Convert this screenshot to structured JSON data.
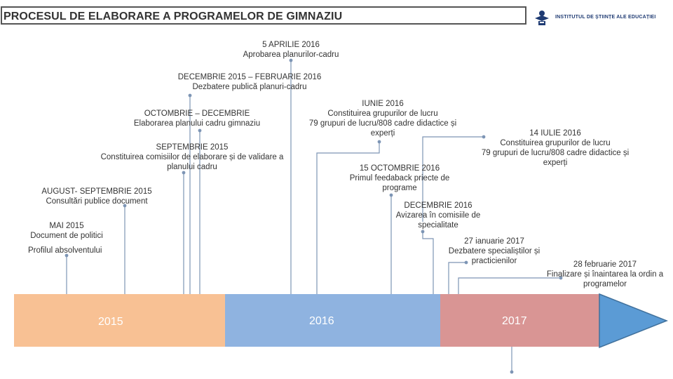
{
  "header": {
    "title": "PROCESUL DE ELABORARE A PROGRAMELOR DE GIMNAZIU",
    "logo_text": "INSTITUTUL DE ȘTIINȚE ALE EDUCAȚIEI"
  },
  "events": [
    {
      "date": "5 APRILIE 2016",
      "text": "Aprobarea planurilor-cadru"
    },
    {
      "date": "DECEMBRIE 2015 – FEBRUARIE 2016",
      "text": "Dezbatere publică planuri-cadru"
    },
    {
      "date": "OCTOMBRIE – DECEMBRIE",
      "text": "Elaborarea planului cadru gimnaziu"
    },
    {
      "date": "IUNIE 2016",
      "lines": [
        "Constituirea grupurilor de lucru",
        "79 grupuri de lucru/808 cadre didactice și",
        "experți"
      ]
    },
    {
      "date": "14 IULIE 2016",
      "lines": [
        "Constituirea grupurilor de lucru",
        "79 grupuri de lucru/808 cadre didactice și",
        "experți"
      ]
    },
    {
      "date": "SEPTEMBRIE 2015",
      "lines": [
        "Constituirea comisiilor de elaborare și de validare a",
        "planului cadru"
      ]
    },
    {
      "date": "15 OCTOMBRIE 2016",
      "lines": [
        "Primul feedaback priecte de",
        "programe"
      ]
    },
    {
      "date": "AUGUST- SEPTEMBRIE 2015",
      "text": "Consultări publice document"
    },
    {
      "date": "DECEMBRIE 2016",
      "lines": [
        "Avizarea în comisiile de",
        "specialitate"
      ]
    },
    {
      "date": "MAI 2015",
      "text": "Document de politici"
    },
    {
      "date": "27 ianuarie 2017",
      "lines": [
        "Dezbatere specialiștilor și",
        "practicienilor"
      ]
    },
    {
      "text": "Profilul absolventului"
    },
    {
      "date": "28 februarie 2017",
      "lines": [
        "Finalizare și înaintarea la ordin a",
        "programelor"
      ]
    }
  ],
  "timeline": {
    "years": [
      "2015",
      "2016",
      "2017"
    ],
    "colors": {
      "y2015": "#f8c194",
      "y2016": "#8fb3e0",
      "y2017": "#d99594",
      "arrow": "#5b9bd5",
      "connector": "#7d95b5"
    }
  }
}
